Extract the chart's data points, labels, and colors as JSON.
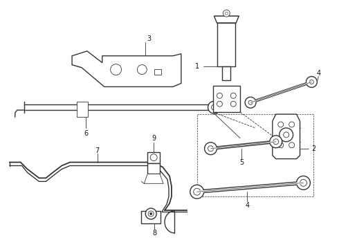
{
  "bg_color": "#ffffff",
  "line_color": "#333333",
  "label_color": "#111111",
  "figsize": [
    4.9,
    3.6
  ],
  "dpi": 100
}
